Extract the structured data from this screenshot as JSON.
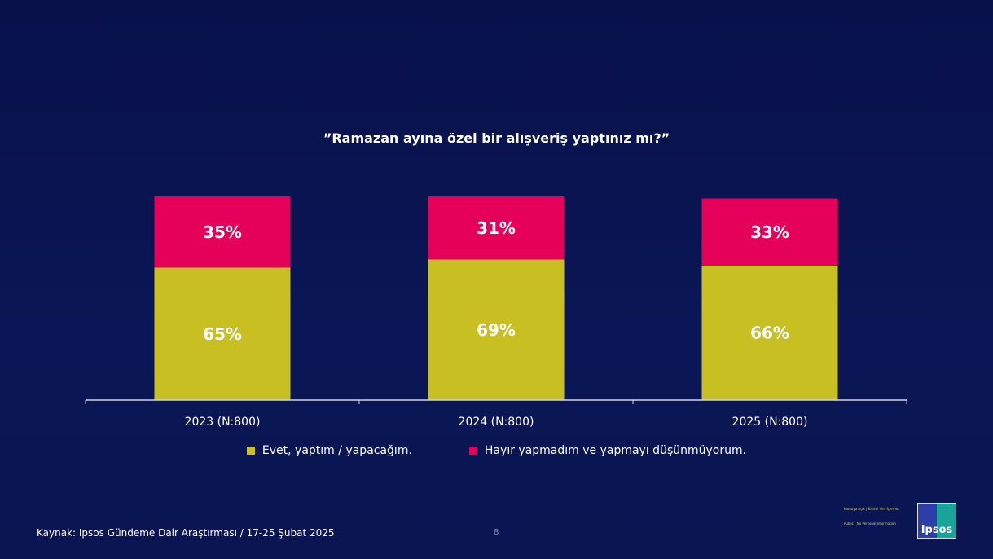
{
  "chart_data": {
    "type": "bar",
    "stacked": true,
    "title": "”Ramazan ayına özel bir alışveriş yaptınız mı?”",
    "categories": [
      "2023 (N:800)",
      "2024 (N:800)",
      "2025 (N:800)"
    ],
    "series": [
      {
        "name": "Evet, yaptım / yapacağım.",
        "color": "#c8bf22",
        "values": [
          65,
          69,
          66
        ],
        "labels": [
          "65%",
          "69%",
          "66%"
        ]
      },
      {
        "name": "Hayır yapmadım ve yapmayı düşünmüyorum.",
        "color": "#e5005a",
        "values": [
          35,
          31,
          33
        ],
        "labels": [
          "35%",
          "31%",
          "33%"
        ]
      }
    ],
    "ylim": [
      0,
      100
    ],
    "legend": "bottom",
    "grid": false
  },
  "footer": {
    "source": "Kaynak: Ipsos Gündeme Dair Araştırması / 17-25 Şubat 2025",
    "page_number": "8",
    "classification_1": "Kamuya Açık | Kişisel Veri İçermez",
    "classification_2": "Public | No Personal Information",
    "logo_text": "Ipsos"
  }
}
